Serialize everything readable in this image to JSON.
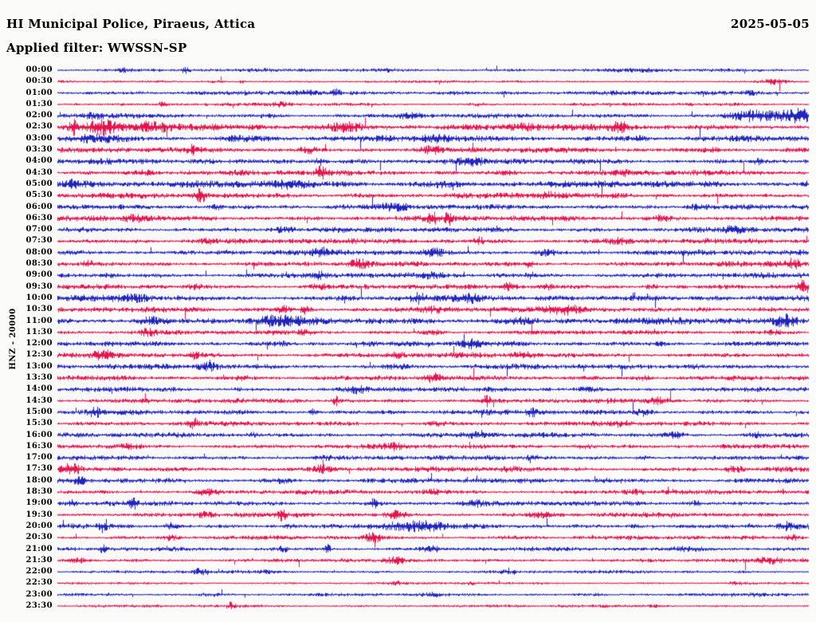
{
  "header": {
    "station_line": "HI Municipal Police, Piraeus, Attica",
    "filter_line": "Applied filter: WWSSN-SP",
    "date": "2025-05-05"
  },
  "chart_data": {
    "type": "seismogram-helicorder",
    "title": "HI Municipal Police, Piraeus, Attica",
    "subtitle": "Applied filter: WWSSN-SP",
    "date": "2025-05-05",
    "filter": "WWSSN-SP",
    "channel_label": "HNZ - 20000",
    "channel": "HNZ",
    "scale": 20000,
    "minutes_per_row": 30,
    "rows_count": 48,
    "time_start": "00:00",
    "time_end": "23:30",
    "legend": "none",
    "grid": false,
    "colors": {
      "blue": "#2125c0",
      "red": "#e8134e",
      "background": "#fbfbf9",
      "text": "#000000"
    },
    "rows": [
      {
        "t": "00:00",
        "c": "blue",
        "a": 1.2,
        "bursts": [
          [
            0.09,
            2.5,
            0.008
          ],
          [
            0.17,
            3.5,
            0.004
          ],
          [
            0.44,
            1.8,
            0.01
          ],
          [
            0.78,
            1.6,
            0.01
          ]
        ]
      },
      {
        "t": "00:30",
        "c": "red",
        "a": 0.8,
        "bursts": [
          [
            0.21,
            2.4,
            0.012
          ],
          [
            0.245,
            4.0,
            0.003
          ],
          [
            0.52,
            1.9,
            0.008
          ],
          [
            0.7,
            1.6,
            0.01
          ],
          [
            0.95,
            2.6,
            0.012
          ]
        ]
      },
      {
        "t": "01:00",
        "c": "blue",
        "a": 1.5,
        "bursts": [
          [
            0.33,
            2.0,
            0.01
          ],
          [
            0.37,
            3.0,
            0.004
          ],
          [
            0.52,
            1.6,
            0.015
          ],
          [
            0.92,
            1.8,
            0.008
          ]
        ]
      },
      {
        "t": "01:30",
        "c": "red",
        "a": 1.1,
        "bursts": [
          [
            0.14,
            4.5,
            0.003
          ],
          [
            0.3,
            2.2,
            0.01
          ],
          [
            0.56,
            1.5,
            0.01
          ]
        ]
      },
      {
        "t": "02:00",
        "c": "blue",
        "a": 1.6,
        "bursts": [
          [
            0.05,
            2.0,
            0.01
          ],
          [
            0.28,
            2.0,
            0.008
          ],
          [
            0.47,
            2.2,
            0.01
          ],
          [
            0.93,
            3.2,
            0.03
          ],
          [
            0.99,
            3.5,
            0.02
          ]
        ]
      },
      {
        "t": "02:30",
        "c": "red",
        "a": 2.2,
        "bursts": [
          [
            0.02,
            4.0,
            0.004
          ],
          [
            0.06,
            2.5,
            0.015
          ],
          [
            0.13,
            2.2,
            0.02
          ],
          [
            0.38,
            2.5,
            0.02
          ],
          [
            0.63,
            2.0,
            0.015
          ],
          [
            0.75,
            2.2,
            0.01
          ]
        ]
      },
      {
        "t": "03:00",
        "c": "blue",
        "a": 2.0,
        "bursts": [
          [
            0.05,
            2.0,
            0.02
          ],
          [
            0.25,
            1.8,
            0.02
          ],
          [
            0.5,
            1.8,
            0.02
          ],
          [
            0.77,
            1.6,
            0.02
          ]
        ]
      },
      {
        "t": "03:30",
        "c": "red",
        "a": 1.8,
        "bursts": [
          [
            0.18,
            2.5,
            0.006
          ],
          [
            0.33,
            2.8,
            0.008
          ],
          [
            0.5,
            2.0,
            0.01
          ],
          [
            0.87,
            2.5,
            0.008
          ]
        ]
      },
      {
        "t": "04:00",
        "c": "blue",
        "a": 1.9,
        "bursts": [
          [
            0.3,
            2.2,
            0.01
          ],
          [
            0.35,
            2.8,
            0.006
          ],
          [
            0.55,
            2.0,
            0.01
          ],
          [
            0.93,
            2.5,
            0.006
          ]
        ]
      },
      {
        "t": "04:30",
        "c": "red",
        "a": 1.8,
        "bursts": [
          [
            0.12,
            2.2,
            0.01
          ],
          [
            0.35,
            3.0,
            0.006
          ],
          [
            0.6,
            2.0,
            0.01
          ],
          [
            0.75,
            2.0,
            0.008
          ]
        ]
      },
      {
        "t": "05:00",
        "c": "blue",
        "a": 2.3,
        "bursts": [
          [
            0.02,
            2.5,
            0.01
          ],
          [
            0.3,
            2.0,
            0.02
          ],
          [
            0.5,
            1.8,
            0.02
          ]
        ]
      },
      {
        "t": "05:30",
        "c": "red",
        "a": 1.9,
        "bursts": [
          [
            0.19,
            3.5,
            0.004
          ],
          [
            0.3,
            2.0,
            0.01
          ],
          [
            0.65,
            2.0,
            0.01
          ]
        ]
      },
      {
        "t": "06:00",
        "c": "blue",
        "a": 1.8,
        "bursts": [
          [
            0.21,
            3.2,
            0.005
          ],
          [
            0.45,
            1.8,
            0.015
          ],
          [
            0.85,
            1.8,
            0.01
          ]
        ]
      },
      {
        "t": "06:30",
        "c": "red",
        "a": 1.9,
        "bursts": [
          [
            0.1,
            2.5,
            0.008
          ],
          [
            0.5,
            2.5,
            0.006
          ],
          [
            0.52,
            2.8,
            0.004
          ],
          [
            0.8,
            2.0,
            0.01
          ]
        ]
      },
      {
        "t": "07:00",
        "c": "blue",
        "a": 1.8,
        "bursts": [
          [
            0.3,
            2.0,
            0.01
          ],
          [
            0.6,
            2.0,
            0.01
          ],
          [
            0.9,
            2.0,
            0.008
          ]
        ]
      },
      {
        "t": "07:30",
        "c": "red",
        "a": 1.8,
        "bursts": [
          [
            0.2,
            2.2,
            0.008
          ],
          [
            0.56,
            2.8,
            0.005
          ],
          [
            0.75,
            2.0,
            0.01
          ]
        ]
      },
      {
        "t": "08:00",
        "c": "blue",
        "a": 1.9,
        "bursts": [
          [
            0.35,
            2.0,
            0.01
          ],
          [
            0.5,
            2.0,
            0.01
          ],
          [
            0.65,
            2.0,
            0.01
          ]
        ]
      },
      {
        "t": "08:30",
        "c": "red",
        "a": 1.8,
        "bursts": [
          [
            0.04,
            2.5,
            0.006
          ],
          [
            0.4,
            2.2,
            0.008
          ],
          [
            0.63,
            2.8,
            0.004
          ],
          [
            0.98,
            3.0,
            0.006
          ]
        ]
      },
      {
        "t": "09:00",
        "c": "blue",
        "a": 1.8,
        "bursts": [
          [
            0.07,
            2.5,
            0.006
          ],
          [
            0.35,
            2.5,
            0.006
          ],
          [
            0.5,
            2.0,
            0.01
          ],
          [
            0.63,
            2.5,
            0.005
          ]
        ]
      },
      {
        "t": "09:30",
        "c": "red",
        "a": 1.7,
        "bursts": [
          [
            0.18,
            2.0,
            0.01
          ],
          [
            0.35,
            2.0,
            0.01
          ],
          [
            0.6,
            2.5,
            0.006
          ],
          [
            0.65,
            3.0,
            0.005
          ],
          [
            0.79,
            2.5,
            0.008
          ],
          [
            0.99,
            4.0,
            0.004
          ]
        ]
      },
      {
        "t": "10:00",
        "c": "blue",
        "a": 2.0,
        "bursts": [
          [
            0.1,
            2.0,
            0.02
          ],
          [
            0.48,
            2.5,
            0.006
          ],
          [
            0.55,
            2.0,
            0.01
          ],
          [
            0.77,
            2.0,
            0.02
          ]
        ]
      },
      {
        "t": "10:30",
        "c": "red",
        "a": 1.8,
        "bursts": [
          [
            0.3,
            3.0,
            0.006
          ],
          [
            0.33,
            3.5,
            0.004
          ],
          [
            0.5,
            2.0,
            0.01
          ],
          [
            0.68,
            2.5,
            0.02
          ],
          [
            0.86,
            2.0,
            0.01
          ]
        ]
      },
      {
        "t": "11:00",
        "c": "blue",
        "a": 2.3,
        "bursts": [
          [
            0.12,
            2.2,
            0.01
          ],
          [
            0.3,
            2.0,
            0.02
          ],
          [
            0.6,
            2.0,
            0.02
          ],
          [
            0.97,
            2.5,
            0.01
          ]
        ]
      },
      {
        "t": "11:30",
        "c": "red",
        "a": 1.5,
        "bursts": [
          [
            0.12,
            2.5,
            0.008
          ],
          [
            0.33,
            2.5,
            0.006
          ],
          [
            0.5,
            2.0,
            0.01
          ],
          [
            0.95,
            2.5,
            0.008
          ]
        ]
      },
      {
        "t": "12:00",
        "c": "blue",
        "a": 1.8,
        "bursts": [
          [
            0.3,
            2.2,
            0.01
          ],
          [
            0.55,
            2.0,
            0.015
          ],
          [
            0.8,
            2.0,
            0.01
          ]
        ]
      },
      {
        "t": "12:30",
        "c": "red",
        "a": 1.7,
        "bursts": [
          [
            0.06,
            2.5,
            0.008
          ],
          [
            0.18,
            2.8,
            0.006
          ],
          [
            0.45,
            2.5,
            0.008
          ],
          [
            0.62,
            2.0,
            0.01
          ]
        ]
      },
      {
        "t": "13:00",
        "c": "blue",
        "a": 1.8,
        "bursts": [
          [
            0.2,
            2.2,
            0.01
          ],
          [
            0.45,
            2.0,
            0.01
          ],
          [
            0.85,
            2.2,
            0.01
          ]
        ]
      },
      {
        "t": "13:30",
        "c": "red",
        "a": 1.7,
        "bursts": [
          [
            0.25,
            2.0,
            0.01
          ],
          [
            0.5,
            2.2,
            0.008
          ],
          [
            0.78,
            2.5,
            0.008
          ]
        ]
      },
      {
        "t": "14:00",
        "c": "blue",
        "a": 1.7,
        "bursts": [
          [
            0.15,
            2.0,
            0.01
          ],
          [
            0.4,
            2.0,
            0.01
          ],
          [
            0.7,
            2.0,
            0.01
          ]
        ]
      },
      {
        "t": "14:30",
        "c": "red",
        "a": 1.6,
        "bursts": [
          [
            0.37,
            3.5,
            0.004
          ],
          [
            0.57,
            3.5,
            0.004
          ],
          [
            0.8,
            2.0,
            0.01
          ]
        ]
      },
      {
        "t": "15:00",
        "c": "blue",
        "a": 1.7,
        "bursts": [
          [
            0.05,
            2.5,
            0.006
          ],
          [
            0.34,
            3.2,
            0.004
          ],
          [
            0.63,
            2.8,
            0.005
          ],
          [
            0.78,
            2.5,
            0.008
          ]
        ]
      },
      {
        "t": "15:30",
        "c": "red",
        "a": 1.6,
        "bursts": [
          [
            0.18,
            2.8,
            0.005
          ],
          [
            0.5,
            2.0,
            0.01
          ],
          [
            0.75,
            2.0,
            0.01
          ]
        ]
      },
      {
        "t": "16:00",
        "c": "blue",
        "a": 1.7,
        "bursts": [
          [
            0.26,
            2.5,
            0.006
          ],
          [
            0.55,
            2.0,
            0.01
          ],
          [
            0.82,
            2.5,
            0.008
          ],
          [
            0.93,
            2.5,
            0.006
          ]
        ]
      },
      {
        "t": "16:30",
        "c": "red",
        "a": 1.6,
        "bursts": [
          [
            0.1,
            2.0,
            0.01
          ],
          [
            0.45,
            2.0,
            0.01
          ],
          [
            0.7,
            2.0,
            0.01
          ]
        ]
      },
      {
        "t": "17:00",
        "c": "blue",
        "a": 1.6,
        "bursts": [
          [
            0.35,
            2.0,
            0.01
          ],
          [
            0.63,
            2.5,
            0.006
          ],
          [
            0.78,
            2.2,
            0.008
          ]
        ]
      },
      {
        "t": "17:30",
        "c": "red",
        "a": 1.7,
        "bursts": [
          [
            0.02,
            2.5,
            0.008
          ],
          [
            0.35,
            2.2,
            0.01
          ],
          [
            0.6,
            2.0,
            0.01
          ],
          [
            0.9,
            2.0,
            0.01
          ]
        ]
      },
      {
        "t": "18:00",
        "c": "blue",
        "a": 1.7,
        "bursts": [
          [
            0.03,
            2.5,
            0.006
          ],
          [
            0.3,
            2.0,
            0.01
          ],
          [
            0.73,
            2.5,
            0.008
          ]
        ]
      },
      {
        "t": "18:30",
        "c": "red",
        "a": 1.6,
        "bursts": [
          [
            0.2,
            2.0,
            0.01
          ],
          [
            0.5,
            2.0,
            0.01
          ],
          [
            0.77,
            2.0,
            0.01
          ]
        ]
      },
      {
        "t": "19:00",
        "c": "blue",
        "a": 1.7,
        "bursts": [
          [
            0.02,
            3.0,
            0.004
          ],
          [
            0.1,
            3.0,
            0.004
          ],
          [
            0.42,
            2.8,
            0.005
          ],
          [
            0.55,
            2.0,
            0.01
          ],
          [
            0.85,
            2.5,
            0.006
          ]
        ]
      },
      {
        "t": "19:30",
        "c": "red",
        "a": 1.6,
        "bursts": [
          [
            0.2,
            2.2,
            0.008
          ],
          [
            0.3,
            3.0,
            0.004
          ],
          [
            0.45,
            2.5,
            0.01
          ],
          [
            0.64,
            2.0,
            0.01
          ]
        ]
      },
      {
        "t": "20:00",
        "c": "blue",
        "a": 1.6,
        "bursts": [
          [
            0.06,
            3.0,
            0.004
          ],
          [
            0.15,
            2.5,
            0.006
          ],
          [
            0.31,
            2.2,
            0.01
          ],
          [
            0.47,
            3.0,
            0.03
          ],
          [
            0.77,
            2.0,
            0.01
          ],
          [
            0.97,
            2.2,
            0.01
          ]
        ]
      },
      {
        "t": "20:30",
        "c": "red",
        "a": 1.4,
        "bursts": [
          [
            0.15,
            2.5,
            0.006
          ],
          [
            0.42,
            2.8,
            0.01
          ],
          [
            0.6,
            2.0,
            0.01
          ],
          [
            0.98,
            2.5,
            0.008
          ]
        ]
      },
      {
        "t": "21:00",
        "c": "blue",
        "a": 1.4,
        "bursts": [
          [
            0.06,
            3.0,
            0.004
          ],
          [
            0.3,
            2.5,
            0.006
          ],
          [
            0.36,
            4.5,
            0.003
          ],
          [
            0.5,
            2.0,
            0.01
          ],
          [
            0.85,
            2.5,
            0.02
          ]
        ]
      },
      {
        "t": "21:30",
        "c": "red",
        "a": 1.3,
        "bursts": [
          [
            0.03,
            2.5,
            0.01
          ],
          [
            0.45,
            2.0,
            0.01
          ],
          [
            0.95,
            2.5,
            0.01
          ]
        ]
      },
      {
        "t": "22:00",
        "c": "blue",
        "a": 1.1,
        "bursts": [
          [
            0.19,
            3.5,
            0.005
          ],
          [
            0.28,
            1.8,
            0.01
          ],
          [
            0.6,
            1.8,
            0.008
          ]
        ]
      },
      {
        "t": "22:30",
        "c": "red",
        "a": 0.9,
        "bursts": [
          [
            0.45,
            2.0,
            0.008
          ],
          [
            0.55,
            2.0,
            0.008
          ],
          [
            0.9,
            2.2,
            0.01
          ]
        ]
      },
      {
        "t": "23:00",
        "c": "blue",
        "a": 1.1,
        "bursts": [
          [
            0.2,
            2.0,
            0.01
          ],
          [
            0.5,
            1.8,
            0.01
          ],
          [
            0.72,
            2.0,
            0.008
          ],
          [
            0.93,
            2.2,
            0.008
          ]
        ]
      },
      {
        "t": "23:30",
        "c": "red",
        "a": 1.0,
        "bursts": [
          [
            0.23,
            3.0,
            0.004
          ],
          [
            0.5,
            1.5,
            0.01
          ],
          [
            0.8,
            1.8,
            0.01
          ]
        ]
      }
    ]
  }
}
